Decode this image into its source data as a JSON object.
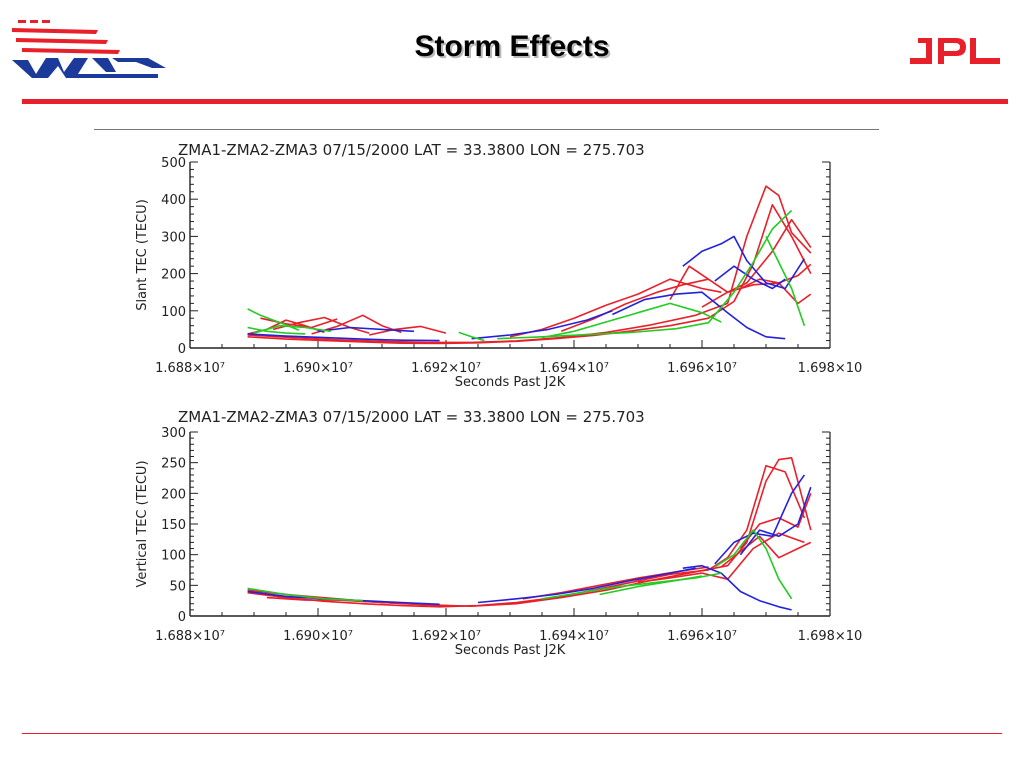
{
  "slide": {
    "title": "Storm Effects",
    "logos": {
      "left": "WAAS",
      "right": "JPL"
    },
    "colors": {
      "accent": "#e8202a",
      "logo_blue": "#1b3a9a"
    }
  },
  "chart_data": [
    {
      "type": "line",
      "title": "ZMA1-ZMA2-ZMA3        07/15/2000        LAT = 33.3800    LON = 275.703",
      "xlabel": "Seconds Past J2K",
      "ylabel": "Slant TEC  (TECU)",
      "xlim": [
        16880000,
        16980000
      ],
      "ylim": [
        0,
        500
      ],
      "xticks": [
        16880000,
        16900000,
        16920000,
        16940000,
        16960000,
        16980000
      ],
      "xtick_labels": [
        "1.688×10⁷",
        "1.690×10⁷",
        "1.692×10⁷",
        "1.694×10⁷",
        "1.696×10⁷",
        "1.698×10"
      ],
      "yticks": [
        0,
        100,
        200,
        300,
        400,
        500
      ],
      "grid": false,
      "series": [
        {
          "color": "#e8202a",
          "x": [
            16891000,
            16895000,
            16899000,
            16903000
          ],
          "y": [
            80,
            65,
            55,
            78
          ]
        },
        {
          "color": "#e8202a",
          "x": [
            16889000,
            16892000,
            16895000,
            16898000,
            16901000
          ],
          "y": [
            38,
            50,
            75,
            60,
            42
          ]
        },
        {
          "color": "#e8202a",
          "x": [
            16893000,
            16897000,
            16901000,
            16905000,
            16908000
          ],
          "y": [
            50,
            68,
            82,
            55,
            40
          ]
        },
        {
          "color": "#e8202a",
          "x": [
            16899000,
            16903000,
            16907000,
            16910000,
            16913000
          ],
          "y": [
            38,
            58,
            88,
            60,
            42
          ]
        },
        {
          "color": "#e8202a",
          "x": [
            16908000,
            16912000,
            16916000,
            16920000
          ],
          "y": [
            35,
            50,
            58,
            40
          ]
        },
        {
          "color": "#e8202a",
          "x": [
            16889000,
            16895000,
            16901000,
            16907000,
            16913000,
            16919000,
            16925000,
            16931000,
            16937000,
            16943000,
            16949000,
            16955000,
            16961000,
            16965000,
            16968000,
            16971000,
            16974000,
            16977000
          ],
          "y": [
            30,
            24,
            20,
            16,
            13,
            12,
            14,
            18,
            25,
            34,
            46,
            60,
            80,
            125,
            225,
            385,
            300,
            200
          ]
        },
        {
          "color": "#e8202a",
          "x": [
            16889000,
            16896000,
            16903000,
            16910000,
            16917000,
            16924000,
            16931000,
            16938000,
            16945000,
            16952000,
            16959000,
            16964000,
            16967000,
            16970000,
            16972000,
            16974000,
            16977000
          ],
          "y": [
            35,
            28,
            22,
            18,
            15,
            15,
            19,
            28,
            42,
            62,
            88,
            120,
            300,
            435,
            410,
            310,
            255
          ]
        },
        {
          "color": "#e8202a",
          "x": [
            16930000,
            16935000,
            16940000,
            16945000,
            16950000,
            16955000,
            16960000,
            16963000
          ],
          "y": [
            30,
            50,
            80,
            115,
            145,
            185,
            160,
            150
          ]
        },
        {
          "color": "#e8202a",
          "x": [
            16938000,
            16943000,
            16948000,
            16953000,
            16957000,
            16961000
          ],
          "y": [
            45,
            78,
            118,
            150,
            170,
            185
          ]
        },
        {
          "color": "#e8202a",
          "x": [
            16955000,
            16958000,
            16961000,
            16964000,
            16967000,
            16971000,
            16974000,
            16977000
          ],
          "y": [
            130,
            220,
            185,
            150,
            175,
            260,
            345,
            270
          ]
        },
        {
          "color": "#e8202a",
          "x": [
            16960000,
            16964000,
            16968000,
            16972000,
            16975000,
            16977000
          ],
          "y": [
            110,
            150,
            170,
            175,
            120,
            145
          ]
        },
        {
          "color": "#e8202a",
          "x": [
            16966000,
            16969000,
            16972000,
            16975000,
            16977000
          ],
          "y": [
            160,
            185,
            175,
            195,
            225
          ]
        },
        {
          "color": "#2222dd",
          "x": [
            16889000,
            16895000,
            16901000,
            16907000,
            16913000,
            16919000
          ],
          "y": [
            38,
            32,
            28,
            24,
            21,
            20
          ]
        },
        {
          "color": "#2222dd",
          "x": [
            16924000,
            16930000,
            16936000,
            16942000,
            16946000
          ],
          "y": [
            25,
            35,
            50,
            75,
            100
          ]
        },
        {
          "color": "#2222dd",
          "x": [
            16946000,
            16951000,
            16956000,
            16960000,
            16964000,
            16967000,
            16970000,
            16973000
          ],
          "y": [
            90,
            130,
            145,
            150,
            95,
            55,
            30,
            25
          ]
        },
        {
          "color": "#2222dd",
          "x": [
            16957000,
            16960000,
            16963000,
            16965000,
            16967000,
            16970000,
            16973000,
            16976000
          ],
          "y": [
            220,
            260,
            280,
            300,
            235,
            175,
            160,
            240
          ]
        },
        {
          "color": "#2222dd",
          "x": [
            16962000,
            16965000,
            16968000,
            16971000,
            16973000
          ],
          "y": [
            180,
            220,
            185,
            160,
            185
          ]
        },
        {
          "color": "#2222dd",
          "x": [
            16900000,
            16905000,
            16910000,
            16915000
          ],
          "y": [
            45,
            55,
            50,
            45
          ]
        },
        {
          "color": "#22cc22",
          "x": [
            16889000,
            16891000,
            16893000,
            16895000,
            16897000
          ],
          "y": [
            105,
            88,
            75,
            62,
            48
          ]
        },
        {
          "color": "#22cc22",
          "x": [
            16889000,
            16892000,
            16895000,
            16898000
          ],
          "y": [
            55,
            45,
            40,
            38
          ]
        },
        {
          "color": "#22cc22",
          "x": [
            16890000,
            16894000,
            16898000,
            16902000
          ],
          "y": [
            40,
            60,
            55,
            45
          ]
        },
        {
          "color": "#22cc22",
          "x": [
            16922000,
            16924000,
            16926000
          ],
          "y": [
            42,
            30,
            20
          ]
        },
        {
          "color": "#22cc22",
          "x": [
            16935000,
            16940000,
            16945000,
            16950000,
            16955000,
            16960000,
            16963000
          ],
          "y": [
            28,
            45,
            70,
            95,
            120,
            95,
            70
          ]
        },
        {
          "color": "#22cc22",
          "x": [
            16928000,
            16935000,
            16942000,
            16949000,
            16956000,
            16961000,
            16965000,
            16968000,
            16971000,
            16974000
          ],
          "y": [
            25,
            30,
            36,
            42,
            52,
            68,
            150,
            230,
            320,
            370
          ]
        },
        {
          "color": "#22cc22",
          "x": [
            16970000,
            16972000,
            16974000,
            16976000
          ],
          "y": [
            300,
            230,
            160,
            60
          ]
        }
      ]
    },
    {
      "type": "line",
      "title": "ZMA1-ZMA2-ZMA3        07/15/2000        LAT = 33.3800    LON = 275.703",
      "xlabel": "Seconds Past J2K",
      "ylabel": "Vertical TEC  (TECU)",
      "xlim": [
        16880000,
        16980000
      ],
      "ylim": [
        0,
        300
      ],
      "xticks": [
        16880000,
        16900000,
        16920000,
        16940000,
        16960000,
        16980000
      ],
      "xtick_labels": [
        "1.688×10⁷",
        "1.690×10⁷",
        "1.692×10⁷",
        "1.694×10⁷",
        "1.696×10⁷",
        "1.698×10"
      ],
      "yticks": [
        0,
        50,
        100,
        150,
        200,
        250,
        300
      ],
      "grid": false,
      "series": [
        {
          "color": "#e8202a",
          "x": [
            16889000,
            16895000,
            16901000,
            16907000,
            16913000,
            16919000,
            16925000,
            16931000,
            16937000,
            16943000,
            16949000,
            16955000,
            16961000,
            16964000,
            16967000,
            16970000,
            16973000,
            16976000
          ],
          "y": [
            38,
            30,
            24,
            20,
            17,
            15,
            17,
            22,
            30,
            42,
            55,
            68,
            75,
            95,
            140,
            245,
            235,
            160
          ]
        },
        {
          "color": "#e8202a",
          "x": [
            16889000,
            16896000,
            16903000,
            16910000,
            16917000,
            16924000,
            16931000,
            16938000,
            16945000,
            16952000,
            16959000,
            16964000,
            16967000,
            16970000,
            16972000,
            16974000,
            16977000
          ],
          "y": [
            42,
            34,
            28,
            22,
            18,
            16,
            20,
            30,
            42,
            58,
            72,
            82,
            120,
            220,
            255,
            258,
            140
          ]
        },
        {
          "color": "#e8202a",
          "x": [
            16892000,
            16898000,
            16904000,
            16910000,
            16916000,
            16922000
          ],
          "y": [
            30,
            26,
            26,
            22,
            19,
            16
          ]
        },
        {
          "color": "#e8202a",
          "x": [
            16900000,
            16905000,
            16910000,
            16915000,
            16920000
          ],
          "y": [
            28,
            25,
            22,
            20,
            17
          ]
        },
        {
          "color": "#e8202a",
          "x": [
            16932000,
            16938000,
            16944000,
            16950000,
            16956000,
            16961000
          ],
          "y": [
            28,
            38,
            50,
            62,
            72,
            80
          ]
        },
        {
          "color": "#e8202a",
          "x": [
            16950000,
            16955000,
            16960000,
            16964000,
            16968000,
            16972000,
            16976000
          ],
          "y": [
            55,
            62,
            70,
            60,
            110,
            135,
            120
          ]
        },
        {
          "color": "#e8202a",
          "x": [
            16963000,
            16966000,
            16969000,
            16972000,
            16975000,
            16977000
          ],
          "y": [
            80,
            105,
            130,
            95,
            110,
            120
          ]
        },
        {
          "color": "#e8202a",
          "x": [
            16966000,
            16969000,
            16972000,
            16975000,
            16977000
          ],
          "y": [
            110,
            150,
            160,
            145,
            200
          ]
        },
        {
          "color": "#2222dd",
          "x": [
            16889000,
            16895000,
            16901000,
            16907000,
            16913000,
            16919000
          ],
          "y": [
            40,
            32,
            28,
            25,
            22,
            19
          ]
        },
        {
          "color": "#2222dd",
          "x": [
            16925000,
            16931000,
            16937000,
            16943000,
            16949000,
            16955000,
            16959000
          ],
          "y": [
            22,
            28,
            35,
            45,
            58,
            70,
            78
          ]
        },
        {
          "color": "#2222dd",
          "x": [
            16957000,
            16960000,
            16963000,
            16966000,
            16969000,
            16972000,
            16974000
          ],
          "y": [
            78,
            82,
            70,
            40,
            25,
            15,
            10
          ]
        },
        {
          "color": "#2222dd",
          "x": [
            16962000,
            16965000,
            16968000,
            16971000,
            16974000,
            16976000
          ],
          "y": [
            85,
            120,
            135,
            130,
            200,
            230
          ]
        },
        {
          "color": "#2222dd",
          "x": [
            16966000,
            16969000,
            16972000,
            16975000,
            16977000
          ],
          "y": [
            100,
            140,
            130,
            150,
            210
          ]
        },
        {
          "color": "#22cc22",
          "x": [
            16889000,
            16895000,
            16901000,
            16907000
          ],
          "y": [
            45,
            35,
            28,
            25
          ]
        },
        {
          "color": "#22cc22",
          "x": [
            16935000,
            16941000,
            16947000,
            16953000,
            16959000,
            16963000
          ],
          "y": [
            28,
            38,
            48,
            55,
            62,
            70
          ]
        },
        {
          "color": "#22cc22",
          "x": [
            16944000,
            16950000,
            16956000,
            16960000
          ],
          "y": [
            35,
            48,
            58,
            65
          ]
        },
        {
          "color": "#22cc22",
          "x": [
            16962000,
            16965000,
            16968000,
            16970000,
            16972000,
            16974000
          ],
          "y": [
            80,
            100,
            140,
            110,
            60,
            28
          ]
        }
      ]
    }
  ]
}
